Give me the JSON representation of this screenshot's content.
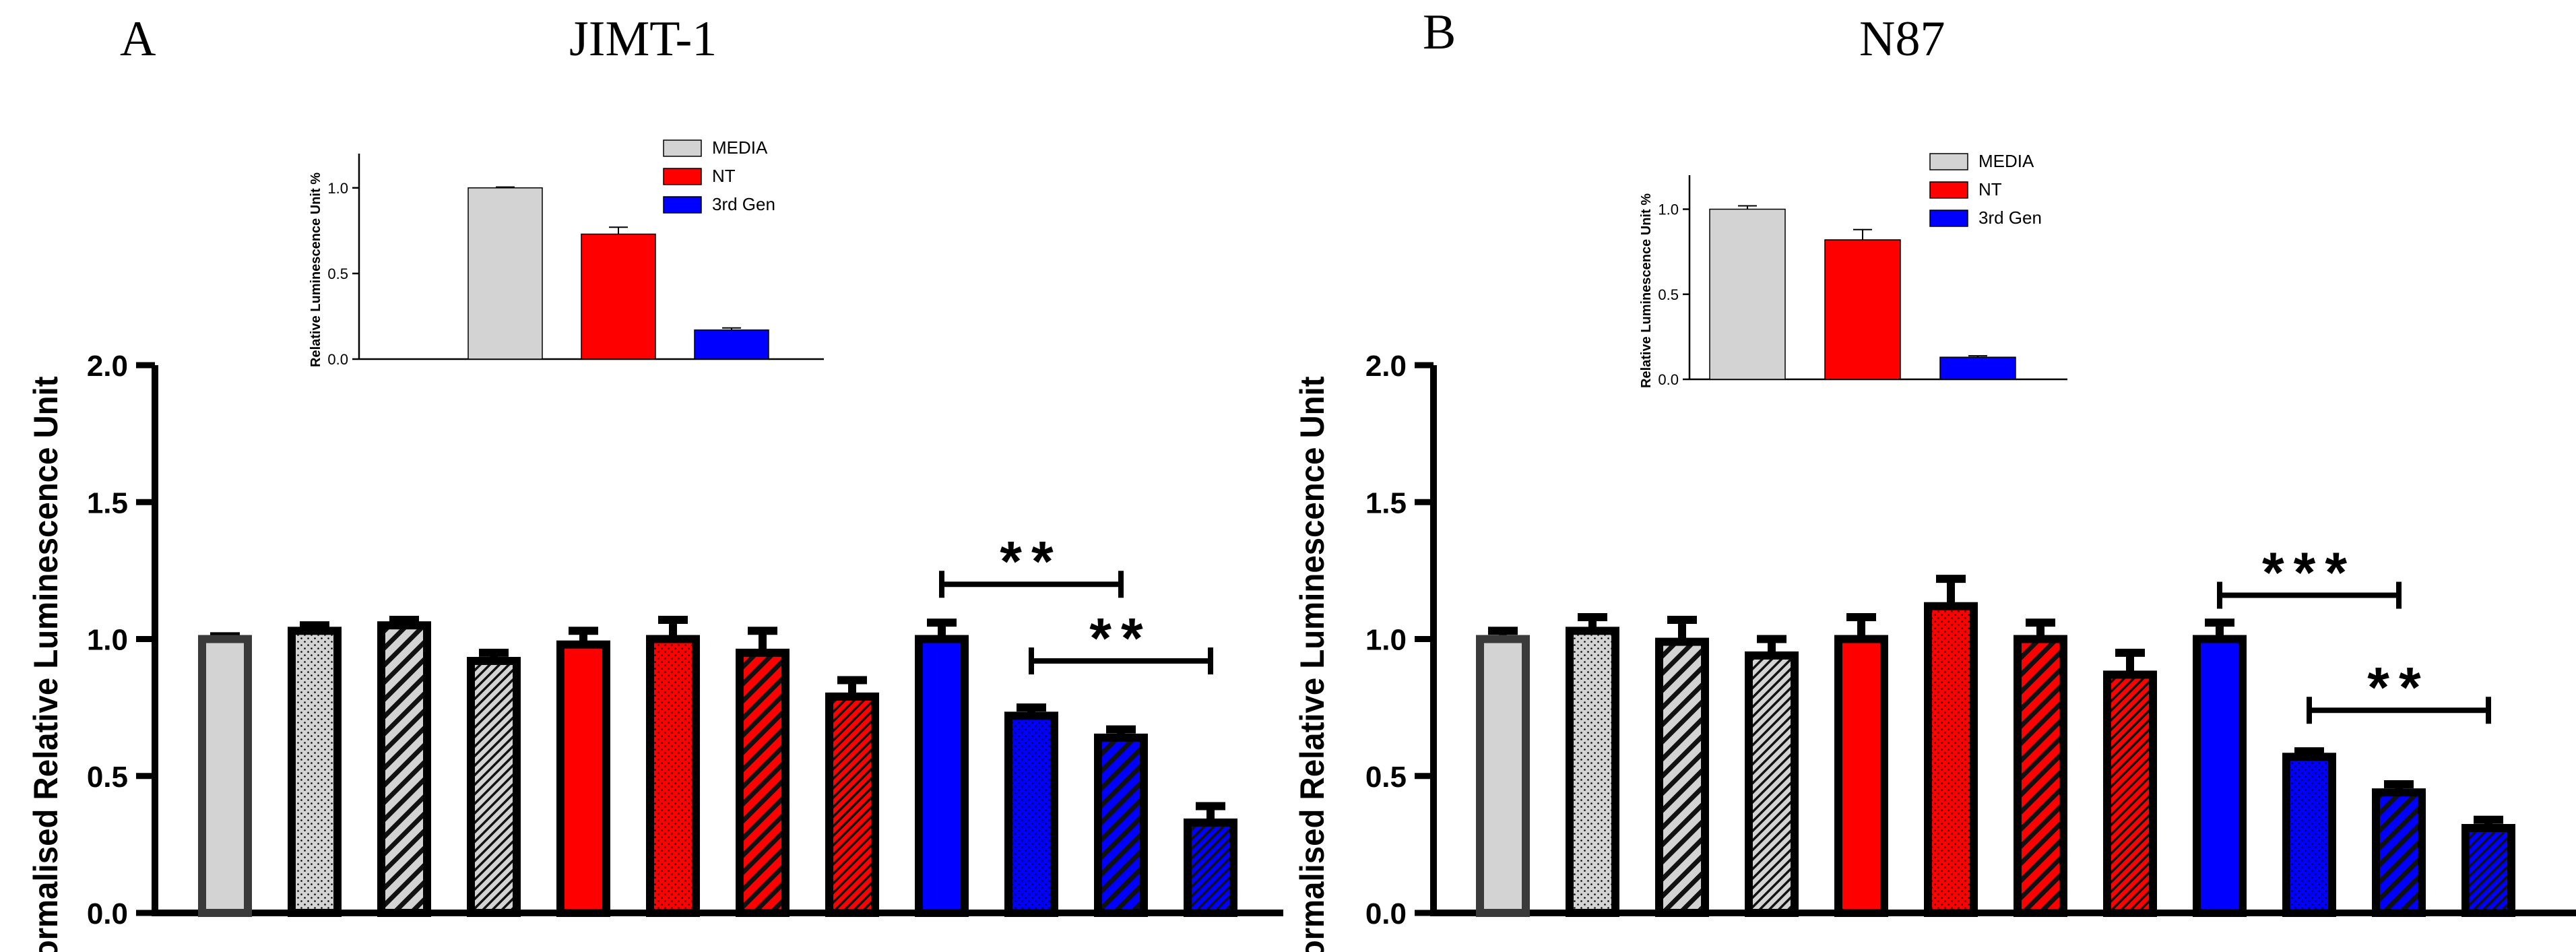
{
  "colors": {
    "gray": "#d3d3d3",
    "red": "#ff0000",
    "blue": "#0000ff",
    "border": "#000000"
  },
  "patterns": [
    "solid",
    "dots",
    "diag-wide",
    "diag-fine"
  ],
  "chart_data": [
    {
      "panel": "A",
      "title": "JIMT-1",
      "type": "bar",
      "ylabel": "Normalised Relative Luminescence Unit",
      "xlabel": "",
      "ylim": [
        0,
        2.0
      ],
      "yticks": [
        "0.0",
        "0.5",
        "1.0",
        "1.5",
        "2.0"
      ],
      "bars": [
        {
          "value": 1.0,
          "error": 0.01,
          "color": "gray",
          "pattern": "solid"
        },
        {
          "value": 1.03,
          "error": 0.02,
          "color": "gray",
          "pattern": "dots"
        },
        {
          "value": 1.05,
          "error": 0.02,
          "color": "gray",
          "pattern": "diag-wide"
        },
        {
          "value": 0.92,
          "error": 0.03,
          "color": "gray",
          "pattern": "diag-fine"
        },
        {
          "value": 0.98,
          "error": 0.05,
          "color": "red",
          "pattern": "solid"
        },
        {
          "value": 1.0,
          "error": 0.07,
          "color": "red",
          "pattern": "dots"
        },
        {
          "value": 0.95,
          "error": 0.08,
          "color": "red",
          "pattern": "diag-wide"
        },
        {
          "value": 0.79,
          "error": 0.06,
          "color": "red",
          "pattern": "diag-fine"
        },
        {
          "value": 1.0,
          "error": 0.06,
          "color": "blue",
          "pattern": "solid"
        },
        {
          "value": 0.72,
          "error": 0.03,
          "color": "blue",
          "pattern": "dots"
        },
        {
          "value": 0.64,
          "error": 0.03,
          "color": "blue",
          "pattern": "diag-wide"
        },
        {
          "value": 0.33,
          "error": 0.06,
          "color": "blue",
          "pattern": "diag-fine"
        }
      ],
      "significance": [
        {
          "from": 8,
          "to": 10,
          "label": "**",
          "level": 1.2
        },
        {
          "from": 9,
          "to": 11,
          "label": "**",
          "level": 0.92
        }
      ],
      "inset": {
        "type": "bar",
        "ylabel": "Relative Luminescence Unit %",
        "ylim": [
          0,
          1.2
        ],
        "yticks": [
          "0.0",
          "0.5",
          "1.0"
        ],
        "bars": [
          {
            "label": "MEDIA",
            "value": 1.0,
            "error": 0.005,
            "color": "gray"
          },
          {
            "label": "NT",
            "value": 0.73,
            "error": 0.04,
            "color": "red"
          },
          {
            "label": "3rd Gen",
            "value": 0.17,
            "error": 0.012,
            "color": "blue"
          }
        ],
        "legend": [
          "MEDIA",
          "NT",
          "3rd Gen"
        ]
      }
    },
    {
      "panel": "B",
      "title": "N87",
      "type": "bar",
      "ylabel": "Normalised Relative Luminescence Unit",
      "xlabel": "",
      "ylim": [
        0,
        2.0
      ],
      "yticks": [
        "0.0",
        "0.5",
        "1.0",
        "1.5",
        "2.0"
      ],
      "bars": [
        {
          "value": 1.0,
          "error": 0.03,
          "color": "gray",
          "pattern": "solid"
        },
        {
          "value": 1.03,
          "error": 0.05,
          "color": "gray",
          "pattern": "dots"
        },
        {
          "value": 0.99,
          "error": 0.08,
          "color": "gray",
          "pattern": "diag-wide"
        },
        {
          "value": 0.94,
          "error": 0.06,
          "color": "gray",
          "pattern": "diag-fine"
        },
        {
          "value": 1.0,
          "error": 0.08,
          "color": "red",
          "pattern": "solid"
        },
        {
          "value": 1.12,
          "error": 0.1,
          "color": "red",
          "pattern": "dots"
        },
        {
          "value": 1.0,
          "error": 0.06,
          "color": "red",
          "pattern": "diag-wide"
        },
        {
          "value": 0.87,
          "error": 0.08,
          "color": "red",
          "pattern": "diag-fine"
        },
        {
          "value": 1.0,
          "error": 0.06,
          "color": "blue",
          "pattern": "solid"
        },
        {
          "value": 0.57,
          "error": 0.02,
          "color": "blue",
          "pattern": "dots"
        },
        {
          "value": 0.44,
          "error": 0.03,
          "color": "blue",
          "pattern": "diag-wide"
        },
        {
          "value": 0.31,
          "error": 0.03,
          "color": "blue",
          "pattern": "diag-fine"
        }
      ],
      "significance": [
        {
          "from": 8,
          "to": 10,
          "label": "***",
          "level": 1.16
        },
        {
          "from": 9,
          "to": 11,
          "label": "**",
          "level": 0.74
        }
      ],
      "inset": {
        "type": "bar",
        "ylabel": "Relative Luminescence Unit %",
        "ylim": [
          0,
          1.2
        ],
        "yticks": [
          "0.0",
          "0.5",
          "1.0"
        ],
        "bars": [
          {
            "label": "MEDIA",
            "value": 1.0,
            "error": 0.02,
            "color": "gray"
          },
          {
            "label": "NT",
            "value": 0.82,
            "error": 0.06,
            "color": "red"
          },
          {
            "label": "3rd Gen",
            "value": 0.13,
            "error": 0.008,
            "color": "blue"
          }
        ],
        "legend": [
          "MEDIA",
          "NT",
          "3rd Gen"
        ]
      }
    }
  ]
}
